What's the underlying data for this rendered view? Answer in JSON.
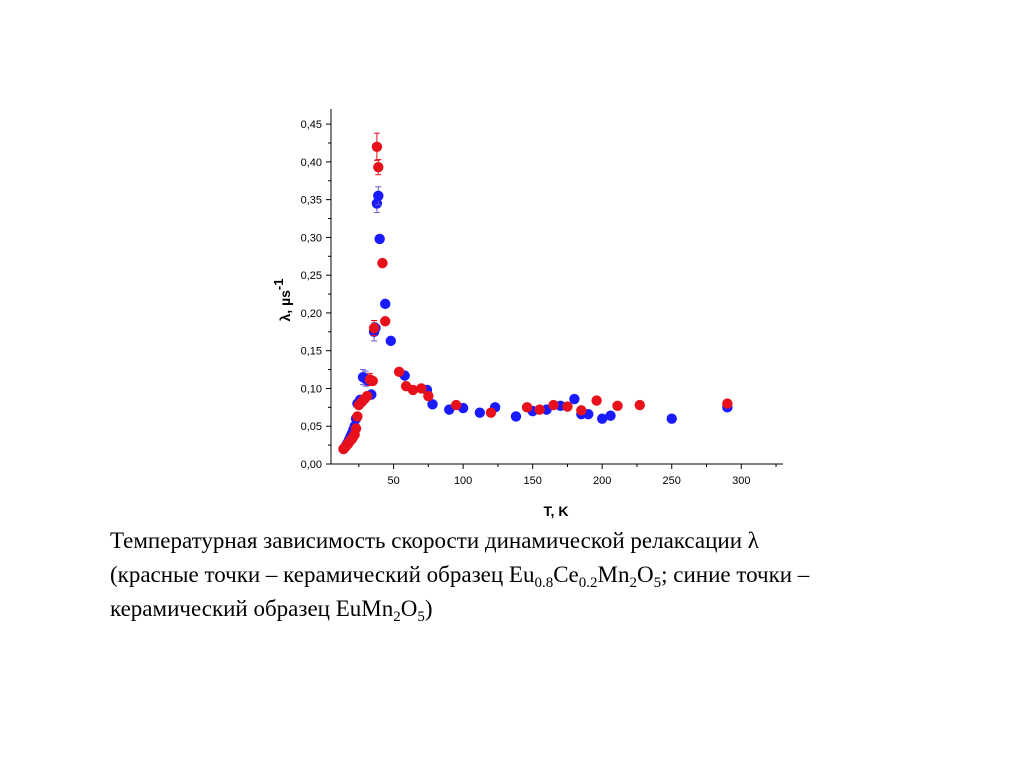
{
  "chart_data": {
    "type": "scatter",
    "xlabel": "T, K",
    "ylabel": "λ, µs",
    "ylabel_exponent": "-1",
    "xlim": [
      5,
      330
    ],
    "ylim": [
      0,
      0.47
    ],
    "xticks": [
      50,
      100,
      150,
      200,
      250,
      300
    ],
    "xtick_labels": [
      "50",
      "100",
      "150",
      "200",
      "250",
      "300"
    ],
    "yticks": [
      0,
      0.05,
      0.1,
      0.15,
      0.2,
      0.25,
      0.3,
      0.35,
      0.4,
      0.45
    ],
    "ytick_labels": [
      "0,00",
      "0,05",
      "0,10",
      "0,15",
      "0,20",
      "0,25",
      "0,30",
      "0,35",
      "0,40",
      "0,45"
    ],
    "grid": false,
    "series": [
      {
        "color": "#1a1aff",
        "errorbar_color": "#6a5acd",
        "x": [
          14,
          15,
          16,
          17,
          18,
          19,
          20,
          21,
          22,
          23,
          24,
          26,
          28,
          30,
          32,
          34,
          36,
          37,
          38,
          39,
          40,
          44,
          48,
          58,
          74,
          78,
          90,
          100,
          112,
          123,
          138,
          150,
          160,
          170,
          180,
          185,
          190,
          200,
          206,
          250,
          290
        ],
        "y": [
          0.02,
          0.022,
          0.025,
          0.028,
          0.032,
          0.036,
          0.04,
          0.045,
          0.05,
          0.06,
          0.08,
          0.085,
          0.115,
          0.113,
          0.11,
          0.092,
          0.175,
          0.18,
          0.345,
          0.355,
          0.298,
          0.212,
          0.163,
          0.117,
          0.098,
          0.079,
          0.072,
          0.074,
          0.068,
          0.075,
          0.063,
          0.07,
          0.072,
          0.077,
          0.086,
          0.066,
          0.066,
          0.06,
          0.064,
          0.06,
          0.075
        ],
        "err": [
          0,
          0,
          0,
          0,
          0,
          0,
          0,
          0,
          0,
          0,
          0,
          0,
          0.01,
          0.01,
          0,
          0,
          0.012,
          0,
          0.012,
          0.012,
          0,
          0,
          0,
          0,
          0,
          0,
          0,
          0,
          0,
          0,
          0,
          0,
          0,
          0,
          0,
          0,
          0,
          0,
          0,
          0,
          0
        ]
      },
      {
        "color": "#e8101a",
        "errorbar_color": "#e8101a",
        "x": [
          14,
          15,
          16,
          17,
          18,
          19,
          20,
          21,
          22,
          23,
          24,
          25,
          27,
          29,
          31,
          33,
          35,
          36,
          38,
          39,
          42,
          44,
          54,
          59,
          64,
          70,
          75,
          95,
          120,
          146,
          155,
          165,
          175,
          185,
          196,
          211,
          227,
          290
        ],
        "y": [
          0.02,
          0.022,
          0.024,
          0.026,
          0.029,
          0.031,
          0.033,
          0.036,
          0.039,
          0.047,
          0.063,
          0.078,
          0.082,
          0.086,
          0.09,
          0.112,
          0.11,
          0.18,
          0.42,
          0.393,
          0.266,
          0.189,
          0.122,
          0.103,
          0.098,
          0.1,
          0.09,
          0.078,
          0.068,
          0.075,
          0.072,
          0.078,
          0.076,
          0.071,
          0.084,
          0.077,
          0.078,
          0.08
        ],
        "err": [
          0,
          0,
          0,
          0,
          0,
          0,
          0,
          0,
          0,
          0,
          0,
          0,
          0,
          0,
          0,
          0.008,
          0,
          0.01,
          0.018,
          0.01,
          0,
          0,
          0,
          0,
          0,
          0,
          0,
          0,
          0,
          0,
          0,
          0,
          0,
          0,
          0,
          0,
          0,
          0
        ]
      }
    ]
  },
  "caption": {
    "line1": "Температурная зависимость скорости динамической релаксации λ",
    "line2_part1": "(красные точки – керамический образец Eu",
    "line2_sub1": "0.8",
    "line2_part2": "Ce",
    "line2_sub2": "0.2",
    "line2_part3": "Mn",
    "line2_sub3": "2",
    "line2_part4": "O",
    "line2_sub4": "5",
    "line2_part5": "; синие точки –",
    "line3_part1": "керамический образец EuMn",
    "line3_sub1": "2",
    "line3_part2": "O",
    "line3_sub2": "5",
    "line3_part3": ")"
  }
}
